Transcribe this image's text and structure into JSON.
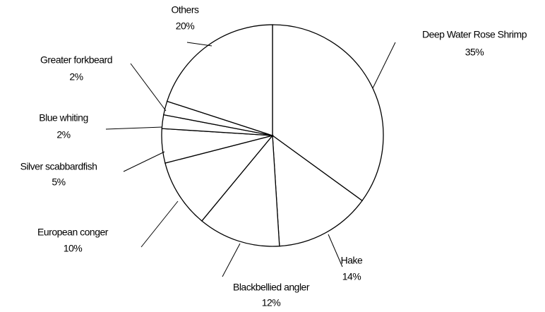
{
  "chart_data": {
    "type": "pie",
    "categories": [
      "Deep Water Rose Shrimp",
      "Hake",
      "Blackbellied angler",
      "European conger",
      "Silver scabbardfish",
      "Blue whiting",
      "Greater forkbeard",
      "Others"
    ],
    "values": [
      35,
      14,
      12,
      10,
      5,
      2,
      2,
      20
    ],
    "value_labels": [
      "35%",
      "14%",
      "12%",
      "10%",
      "5%",
      "2%",
      "2%",
      "20%"
    ],
    "color": "#ffffff"
  }
}
